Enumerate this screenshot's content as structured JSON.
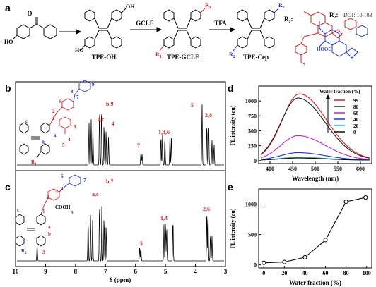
{
  "panels": {
    "a": "a",
    "b": "b",
    "c": "c",
    "d": "d",
    "e": "e"
  },
  "scheme": {
    "compounds": [
      "TPE-OH",
      "TPE-GCLE",
      "TPE-Cep"
    ],
    "reagents": [
      "GCLE",
      "TFA"
    ],
    "substituent_labels": [
      "R",
      "R"
    ],
    "substituent_subs": [
      "1",
      "2"
    ],
    "substituent_colon": ":",
    "doi_text": "DOI: 10.103",
    "cooh": "HOOC",
    "oh": "OH",
    "ho": "HO"
  },
  "nmr_b": {
    "peak_labels": [
      "a,c",
      "b,9",
      "4",
      "7",
      "1,3,6",
      "5",
      "2,8"
    ],
    "structure_numbers": [
      "1",
      "2",
      "3",
      "4",
      "5",
      "6",
      "7",
      "8",
      "9"
    ],
    "structure_letters": [
      "a",
      "b",
      "c"
    ],
    "r_label": "R",
    "r_sub": "1"
  },
  "nmr_c": {
    "peak_labels": [
      "a,c",
      "b,7",
      "5",
      "1,4",
      "2,6",
      "3"
    ],
    "structure_numbers": [
      "1",
      "2",
      "3",
      "4",
      "5",
      "6",
      "7"
    ],
    "structure_letters": [
      "a",
      "b",
      "c"
    ],
    "r_label": "R",
    "r_sub": "2",
    "cooh": "COOH"
  },
  "nmr_axis": {
    "xlabel": "δ (ppm)",
    "ticks": [
      "10",
      "9",
      "8",
      "7",
      "6",
      "5",
      "4",
      "3"
    ]
  },
  "chart_data": [
    {
      "type": "line",
      "panel": "d",
      "xlabel": "Wavelength (nm)",
      "ylabel": "FL intensity (au)",
      "xlim": [
        375,
        625
      ],
      "ylim": [
        -50,
        1250
      ],
      "xticks": [
        400,
        450,
        500,
        550,
        600
      ],
      "yticks": [
        0,
        250,
        500,
        750,
        1000
      ],
      "legend_title": "Water fraction (%)",
      "legend_placement": "top-right",
      "series": [
        {
          "name": "99",
          "color": "#d62020",
          "peak": 1110,
          "peak_x": 465
        },
        {
          "name": "80",
          "color": "#222222",
          "peak": 1040,
          "peak_x": 462
        },
        {
          "name": "60",
          "color": "#cc22cc",
          "peak": 410,
          "peak_x": 462
        },
        {
          "name": "40",
          "color": "#2233cc",
          "peak": 125,
          "peak_x": 462
        },
        {
          "name": "20",
          "color": "#22bbbb",
          "peak": 48,
          "peak_x": 462
        },
        {
          "name": "0",
          "color": "#111111",
          "peak": 35,
          "peak_x": 462
        }
      ]
    },
    {
      "type": "line",
      "panel": "e",
      "xlabel": "Water fraction (%)",
      "ylabel": "FL intensity (au)",
      "xlim": [
        -5,
        105
      ],
      "ylim": [
        -50,
        1250
      ],
      "xticks": [
        0,
        20,
        40,
        60,
        80,
        100
      ],
      "yticks": [
        0,
        500,
        1000
      ],
      "x": [
        0,
        20,
        40,
        60,
        80,
        99
      ],
      "values": [
        35,
        48,
        125,
        410,
        1040,
        1110
      ]
    }
  ]
}
